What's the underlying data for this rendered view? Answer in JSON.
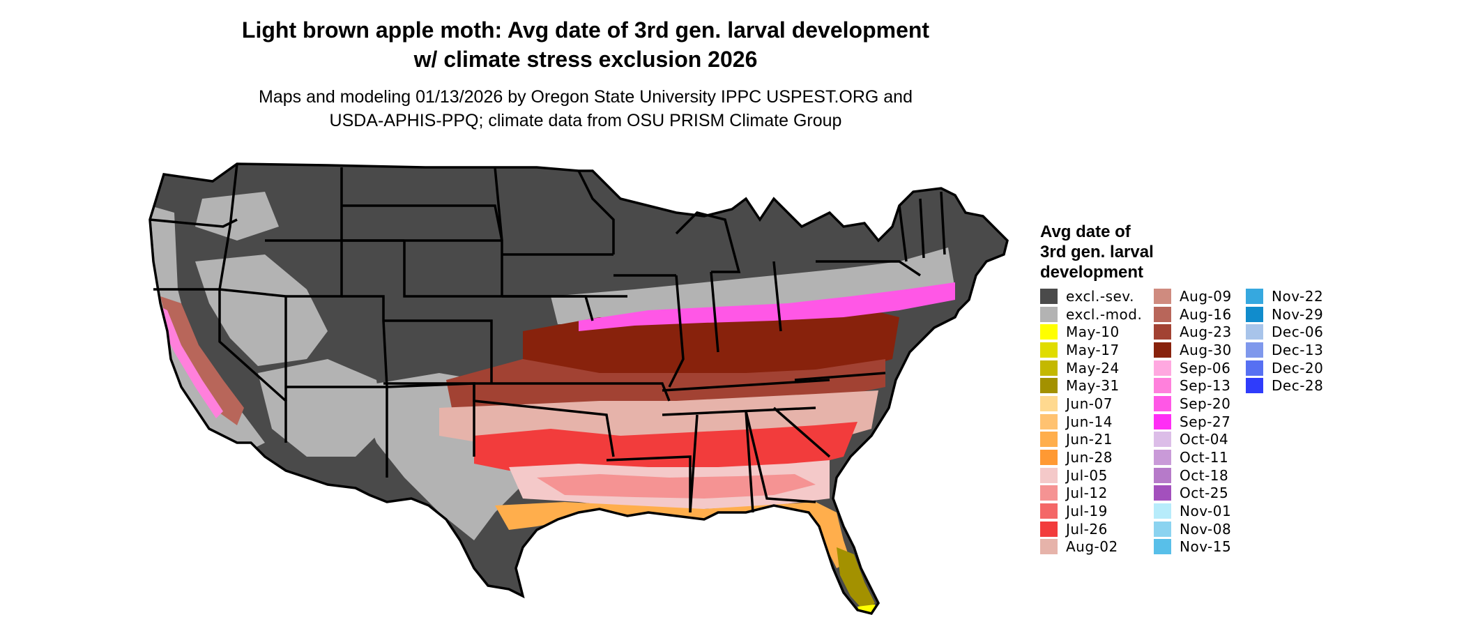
{
  "title_lines": [
    "Light brown apple moth: Avg date of 3rd gen. larval development",
    "w/ climate stress exclusion 2026"
  ],
  "subtitle_lines": [
    "Maps and modeling 01/13/2026 by Oregon State University IPPC USPEST.ORG and",
    "USDA-APHIS-PPQ; climate data from OSU PRISM Climate Group"
  ],
  "legend": {
    "title_lines": [
      "Avg date of",
      "3rd gen. larval",
      "development"
    ],
    "columns": [
      [
        {
          "label": "excl.-sev.",
          "color": "#4a4a4a"
        },
        {
          "label": "excl.-mod.",
          "color": "#b3b3b3"
        },
        {
          "label": "May-10",
          "color": "#ffff00"
        },
        {
          "label": "May-17",
          "color": "#e0dc00"
        },
        {
          "label": "May-24",
          "color": "#c4b800"
        },
        {
          "label": "May-31",
          "color": "#a39100"
        },
        {
          "label": "Jun-07",
          "color": "#ffd98f"
        },
        {
          "label": "Jun-14",
          "color": "#ffc271"
        },
        {
          "label": "Jun-21",
          "color": "#ffae4c"
        },
        {
          "label": "Jun-28",
          "color": "#ff9933"
        },
        {
          "label": "Jul-05",
          "color": "#f4c9c9"
        },
        {
          "label": "Jul-12",
          "color": "#f59393"
        },
        {
          "label": "Jul-19",
          "color": "#f46767"
        },
        {
          "label": "Jul-26",
          "color": "#f23c3c"
        },
        {
          "label": "Aug-02",
          "color": "#e6b3aa"
        }
      ],
      [
        {
          "label": "Aug-09",
          "color": "#cf8b7f"
        },
        {
          "label": "Aug-16",
          "color": "#b8665a"
        },
        {
          "label": "Aug-23",
          "color": "#a24233"
        },
        {
          "label": "Aug-30",
          "color": "#88220c"
        },
        {
          "label": "Sep-06",
          "color": "#ffa8e0"
        },
        {
          "label": "Sep-13",
          "color": "#ff80dc"
        },
        {
          "label": "Sep-20",
          "color": "#ff57e6"
        },
        {
          "label": "Sep-27",
          "color": "#ff2ef5"
        },
        {
          "label": "Oct-04",
          "color": "#dcbde8"
        },
        {
          "label": "Oct-11",
          "color": "#c99ad8"
        },
        {
          "label": "Oct-18",
          "color": "#b67ac9"
        },
        {
          "label": "Oct-25",
          "color": "#a350bd"
        },
        {
          "label": "Nov-01",
          "color": "#b7ecfb"
        },
        {
          "label": "Nov-08",
          "color": "#8bd3f0"
        },
        {
          "label": "Nov-15",
          "color": "#58bfe9"
        }
      ],
      [
        {
          "label": "Nov-22",
          "color": "#36a8df"
        },
        {
          "label": "Nov-29",
          "color": "#118ccc"
        },
        {
          "label": "Dec-06",
          "color": "#a8c4ea"
        },
        {
          "label": "Dec-13",
          "color": "#7f98ec"
        },
        {
          "label": "Dec-20",
          "color": "#5770f2"
        },
        {
          "label": "Dec-28",
          "color": "#2f3cfb"
        }
      ]
    ]
  }
}
